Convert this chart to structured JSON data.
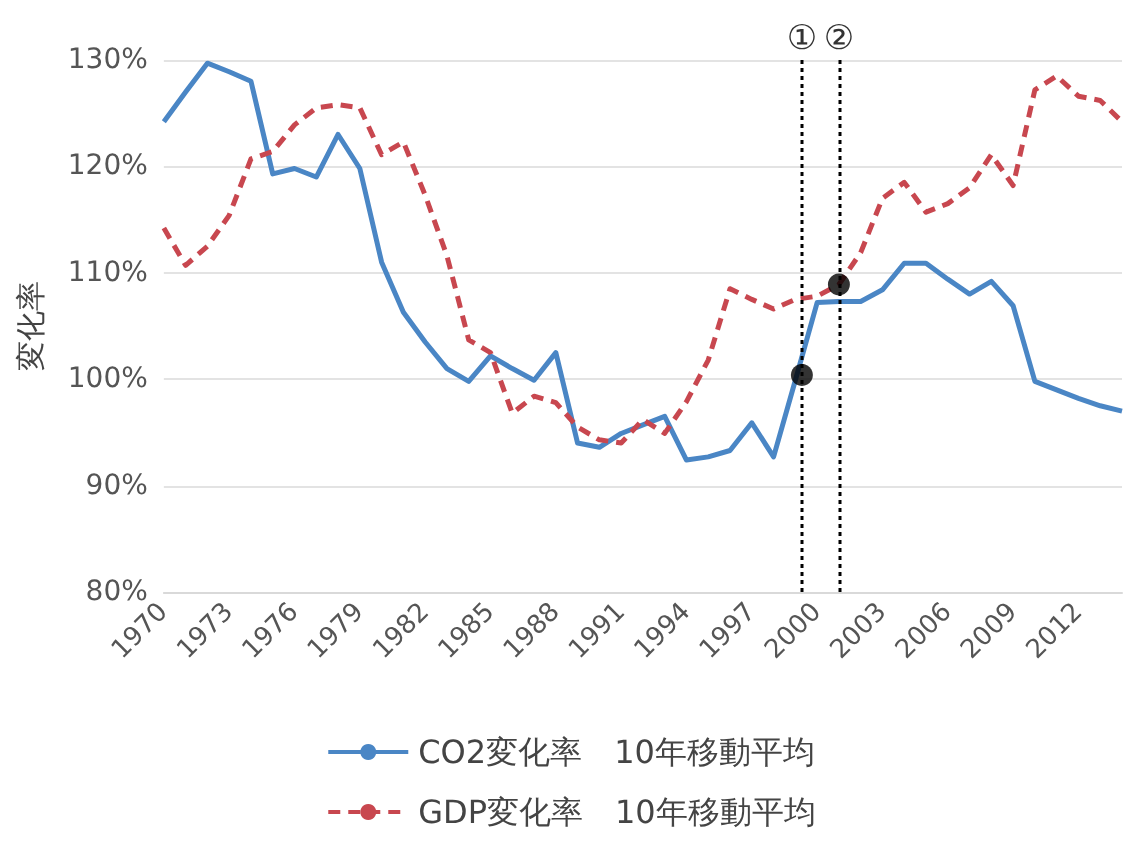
{
  "chart_data": {
    "type": "line",
    "ylabel": "変化率",
    "x": [
      1970,
      1971,
      1972,
      1973,
      1974,
      1975,
      1976,
      1977,
      1978,
      1979,
      1980,
      1981,
      1982,
      1983,
      1984,
      1985,
      1986,
      1987,
      1988,
      1989,
      1990,
      1991,
      1992,
      1993,
      1994,
      1995,
      1996,
      1997,
      1998,
      1999,
      2000,
      2001,
      2002,
      2003,
      2004,
      2005,
      2006,
      2007,
      2008,
      2009,
      2010,
      2011,
      2012,
      2013,
      2014
    ],
    "series": [
      {
        "name": "CO2変化率　10年移動平均",
        "color": "#4a86c5",
        "line_style": "solid",
        "marker": "none",
        "values": [
          124.2,
          127.0,
          129.7,
          128.9,
          128.0,
          119.3,
          119.8,
          119.0,
          123.0,
          119.8,
          111.0,
          106.3,
          103.5,
          101.0,
          99.8,
          102.2,
          101.0,
          99.9,
          102.5,
          94.0,
          93.6,
          94.9,
          95.7,
          96.5,
          92.4,
          92.7,
          93.3,
          95.9,
          92.7,
          99.9,
          107.2,
          107.3,
          107.3,
          108.4,
          110.9,
          110.9,
          109.4,
          108.0,
          109.2,
          106.9,
          99.8,
          99.0,
          98.2,
          97.5,
          97.0
        ]
      },
      {
        "name": "GDP変化率　10年移動平均",
        "color": "#c8474f",
        "line_style": "dashed",
        "marker": "none",
        "values": [
          114.2,
          110.7,
          112.5,
          115.4,
          120.7,
          121.4,
          123.9,
          125.5,
          125.8,
          125.5,
          121.1,
          122.3,
          117.3,
          111.6,
          103.7,
          102.5,
          96.8,
          98.4,
          97.8,
          95.5,
          94.3,
          94.0,
          96.2,
          94.9,
          97.9,
          101.8,
          108.5,
          107.5,
          106.6,
          107.5,
          107.8,
          108.9,
          111.9,
          117.0,
          118.5,
          115.7,
          116.5,
          118.0,
          121.1,
          118.2,
          127.2,
          128.5,
          126.6,
          126.2,
          124.2
        ]
      },
      {
        "type": "scatter",
        "color": "#000000",
        "marker": "circle",
        "x": [
          1999.3,
          2001
        ],
        "values": [
          100.4,
          108.9
        ]
      }
    ],
    "xlim": [
      1970,
      2014
    ],
    "xticks": [
      1970,
      1973,
      1976,
      1979,
      1982,
      1985,
      1988,
      1991,
      1994,
      1997,
      2000,
      2003,
      2006,
      2009,
      2012
    ],
    "ylim": [
      80,
      130
    ],
    "yticks": [
      {
        "value": 80,
        "label": "80%"
      },
      {
        "value": 90,
        "label": "90%"
      },
      {
        "value": 100,
        "label": "100%"
      },
      {
        "value": 110,
        "label": "110%"
      },
      {
        "value": 120,
        "label": "120%"
      },
      {
        "value": 130,
        "label": "130%"
      }
    ],
    "grid": "y",
    "legend": "bottom",
    "ref_lines": [
      {
        "axis": "x",
        "value": 1999.3,
        "label": "①",
        "color": "#000000",
        "line_style": "dotted"
      },
      {
        "axis": "x",
        "value": 2001,
        "label": "②",
        "color": "#000000",
        "line_style": "dotted"
      }
    ]
  }
}
